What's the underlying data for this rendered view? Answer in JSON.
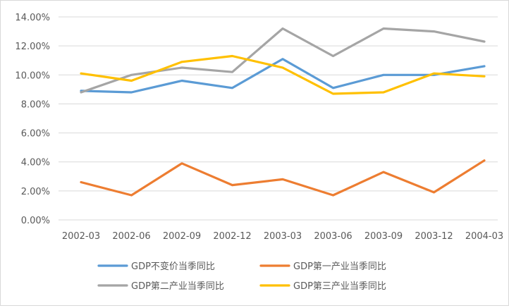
{
  "chart_data": {
    "type": "line",
    "title": "",
    "xlabel": "",
    "ylabel": "",
    "categories": [
      "2002-03",
      "2002-06",
      "2002-09",
      "2002-12",
      "2003-03",
      "2003-06",
      "2003-09",
      "2003-12",
      "2004-03"
    ],
    "y_ticks": [
      "0.00%",
      "2.00%",
      "4.00%",
      "6.00%",
      "8.00%",
      "10.00%",
      "12.00%",
      "14.00%"
    ],
    "ylim": [
      0,
      14
    ],
    "y_unit": "%",
    "grid": true,
    "legend_position": "bottom",
    "series": [
      {
        "name": "GDP不变价当季同比",
        "color": "#5B9BD5",
        "values": [
          8.9,
          8.8,
          9.6,
          9.1,
          11.1,
          9.1,
          10.0,
          10.0,
          10.6
        ]
      },
      {
        "name": "GDP第一产业当季同比",
        "color": "#ED7D31",
        "values": [
          2.6,
          1.7,
          3.9,
          2.4,
          2.8,
          1.7,
          3.3,
          1.9,
          4.1
        ]
      },
      {
        "name": "GDP第二产业当季同比",
        "color": "#A5A5A5",
        "values": [
          8.8,
          10.0,
          10.5,
          10.2,
          13.2,
          11.3,
          13.2,
          13.0,
          12.3
        ]
      },
      {
        "name": "GDP第三产业当季同比",
        "color": "#FFC000",
        "values": [
          10.1,
          9.6,
          10.9,
          11.3,
          10.5,
          8.7,
          8.8,
          10.1,
          9.9
        ]
      }
    ]
  }
}
